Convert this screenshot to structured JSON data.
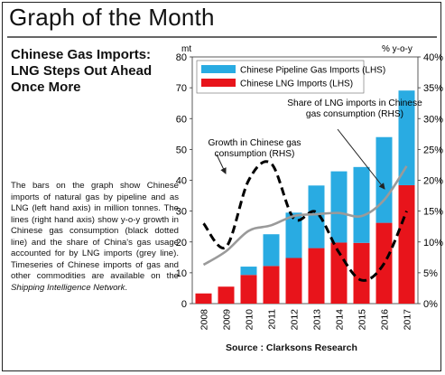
{
  "header": {
    "title": "Graph of the Month"
  },
  "article": {
    "headline_lines": [
      "Chinese Gas Imports:",
      "LNG Steps Out Ahead",
      "Once More"
    ],
    "body_pre": "The bars on the graph show Chinese imports of natural gas by pipeline and as LNG (left hand axis) in million tonnes. The lines (right hand axis) show y-o-y growth in Chinese gas consumption (black dotted line) and the share of China's gas usage accounted for by LNG imports (grey line). Timeseries of Chinese imports of gas and other commodities are available on the ",
    "body_italic": "Shipping Intelligence Network",
    "body_post": "."
  },
  "footer": {
    "source": "Source : Clarksons Research"
  },
  "chart_data": {
    "type": "bar",
    "stacked": true,
    "left_axis_unit": "mt",
    "right_axis_unit": "% y-o-y",
    "ylim_left": [
      0,
      80
    ],
    "ylim_right": [
      0,
      40
    ],
    "yticks_left": [
      "0",
      "10",
      "20",
      "30",
      "40",
      "50",
      "60",
      "70",
      "80"
    ],
    "yticks_right": [
      "0%",
      "5%",
      "10%",
      "15%",
      "20%",
      "25%",
      "30%",
      "35%",
      "40%"
    ],
    "categories": [
      "2008",
      "2009",
      "2010",
      "2011",
      "2012",
      "2013",
      "2014",
      "2015",
      "2016",
      "2017"
    ],
    "series": [
      {
        "name": "Chinese LNG Imports (LHS)",
        "kind": "bar",
        "axis": "left",
        "color": "#e8141b",
        "values": [
          3.3,
          5.5,
          9.3,
          12.2,
          14.8,
          18.0,
          19.8,
          19.7,
          26.2,
          38.4
        ]
      },
      {
        "name": "Chinese Pipeline Gas Imports (LHS)",
        "kind": "bar",
        "axis": "left",
        "color": "#29abe2",
        "values": [
          0.0,
          0.0,
          2.7,
          10.3,
          14.7,
          20.3,
          23.1,
          24.6,
          27.8,
          30.7
        ]
      },
      {
        "name": "Growth in Chinese gas consumption (RHS)",
        "kind": "line",
        "axis": "right",
        "style": "dashed",
        "color": "#000000",
        "values": [
          13.0,
          9.2,
          20.0,
          22.7,
          13.8,
          14.8,
          8.3,
          3.8,
          6.5,
          15.0
        ]
      },
      {
        "name": "Share of LNG imports in Chinese gas consumption (RHS)",
        "kind": "line",
        "axis": "right",
        "style": "solid",
        "color": "#9a9a9a",
        "values": [
          6.3,
          8.5,
          11.8,
          12.7,
          14.2,
          14.5,
          14.7,
          14.2,
          16.8,
          22.3
        ]
      }
    ],
    "legend": {
      "placement": "top-left",
      "items": [
        "Chinese Pipeline Gas Imports (LHS)",
        "Chinese LNG Imports (LHS)"
      ]
    },
    "annotations": {
      "share_label": [
        "Share of LNG imports in Chinese",
        "gas consumption (RHS)"
      ],
      "growth_label": [
        "Growth in Chinese gas",
        "consumption (RHS)"
      ]
    },
    "grid": false
  }
}
